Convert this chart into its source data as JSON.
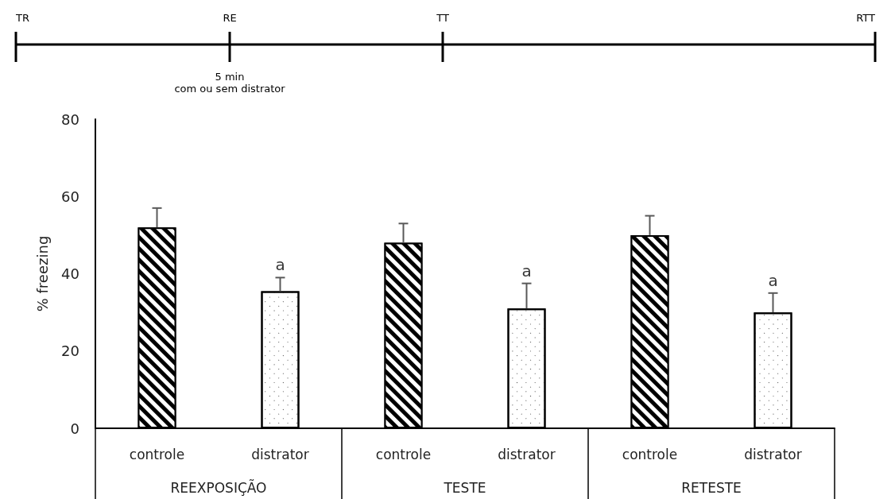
{
  "chart_data": {
    "type": "bar",
    "ylabel": "% freezing",
    "categories": [
      "controle",
      "distrator",
      "controle",
      "distrator",
      "controle",
      "distrator"
    ],
    "values": [
      52,
      35.5,
      48,
      31,
      50,
      30
    ],
    "colors": [
      "#000000",
      "#ffffff",
      "#000000",
      "#ffffff",
      "#000000",
      "#ffffff"
    ],
    "errors": [
      [
        52,
        57
      ],
      [
        35.5,
        39
      ],
      [
        48,
        53
      ],
      [
        31,
        37.5
      ],
      [
        50,
        55
      ],
      [
        30,
        35
      ]
    ],
    "value_labels": [
      null,
      "a",
      null,
      "a",
      null,
      "a"
    ],
    "ylim": [
      0,
      80
    ],
    "yticks": [
      0,
      20,
      40,
      60,
      80
    ],
    "grid": false,
    "annotations": [
      "TR",
      "RE",
      "TT",
      "RTT",
      "5 min",
      "com ou sem distrator",
      "REEXPOSIÇÃO",
      "TESTE",
      "RETESTE"
    ]
  }
}
